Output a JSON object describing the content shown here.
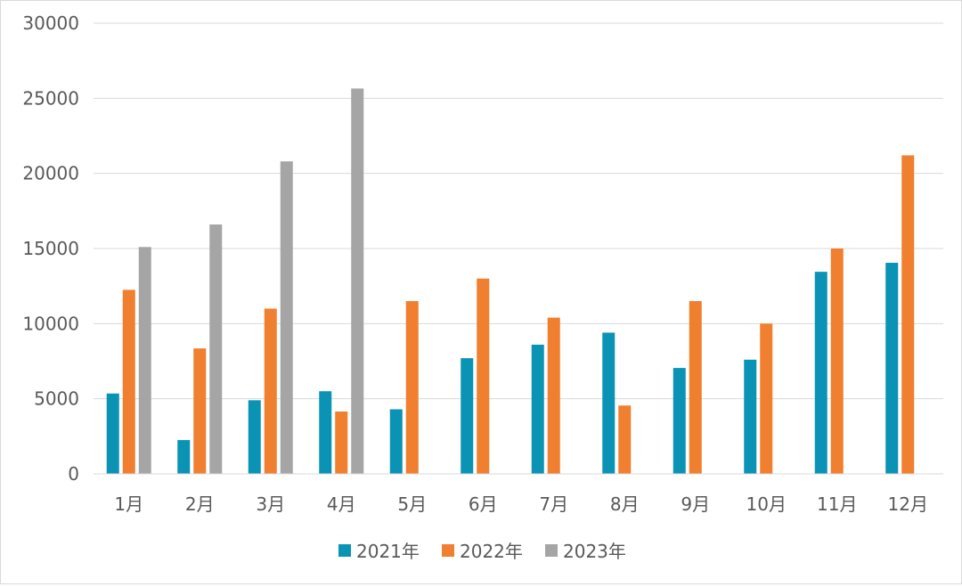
{
  "chart_data": {
    "type": "bar",
    "categories": [
      "1月",
      "2月",
      "3月",
      "4月",
      "5月",
      "6月",
      "7月",
      "8月",
      "9月",
      "10月",
      "11月",
      "12月"
    ],
    "series": [
      {
        "name": "2021年",
        "color": "#0a93b5",
        "values": [
          5350,
          2250,
          4900,
          5500,
          4300,
          7700,
          8600,
          9400,
          7050,
          7600,
          13450,
          14050
        ]
      },
      {
        "name": "2022年",
        "color": "#f07f2f",
        "values": [
          12250,
          8350,
          11000,
          4150,
          11500,
          13000,
          10400,
          4550,
          11500,
          10000,
          15000,
          21200
        ]
      },
      {
        "name": "2023年",
        "color": "#a5a5a5",
        "values": [
          15100,
          16600,
          20800,
          25650,
          null,
          null,
          null,
          null,
          null,
          null,
          null,
          null
        ]
      }
    ],
    "ylim": [
      0,
      30000
    ],
    "yticks": [
      0,
      5000,
      10000,
      15000,
      20000,
      25000,
      30000
    ],
    "grid": true,
    "legend": "bottom-center",
    "title": "",
    "xlabel": "",
    "ylabel": ""
  }
}
